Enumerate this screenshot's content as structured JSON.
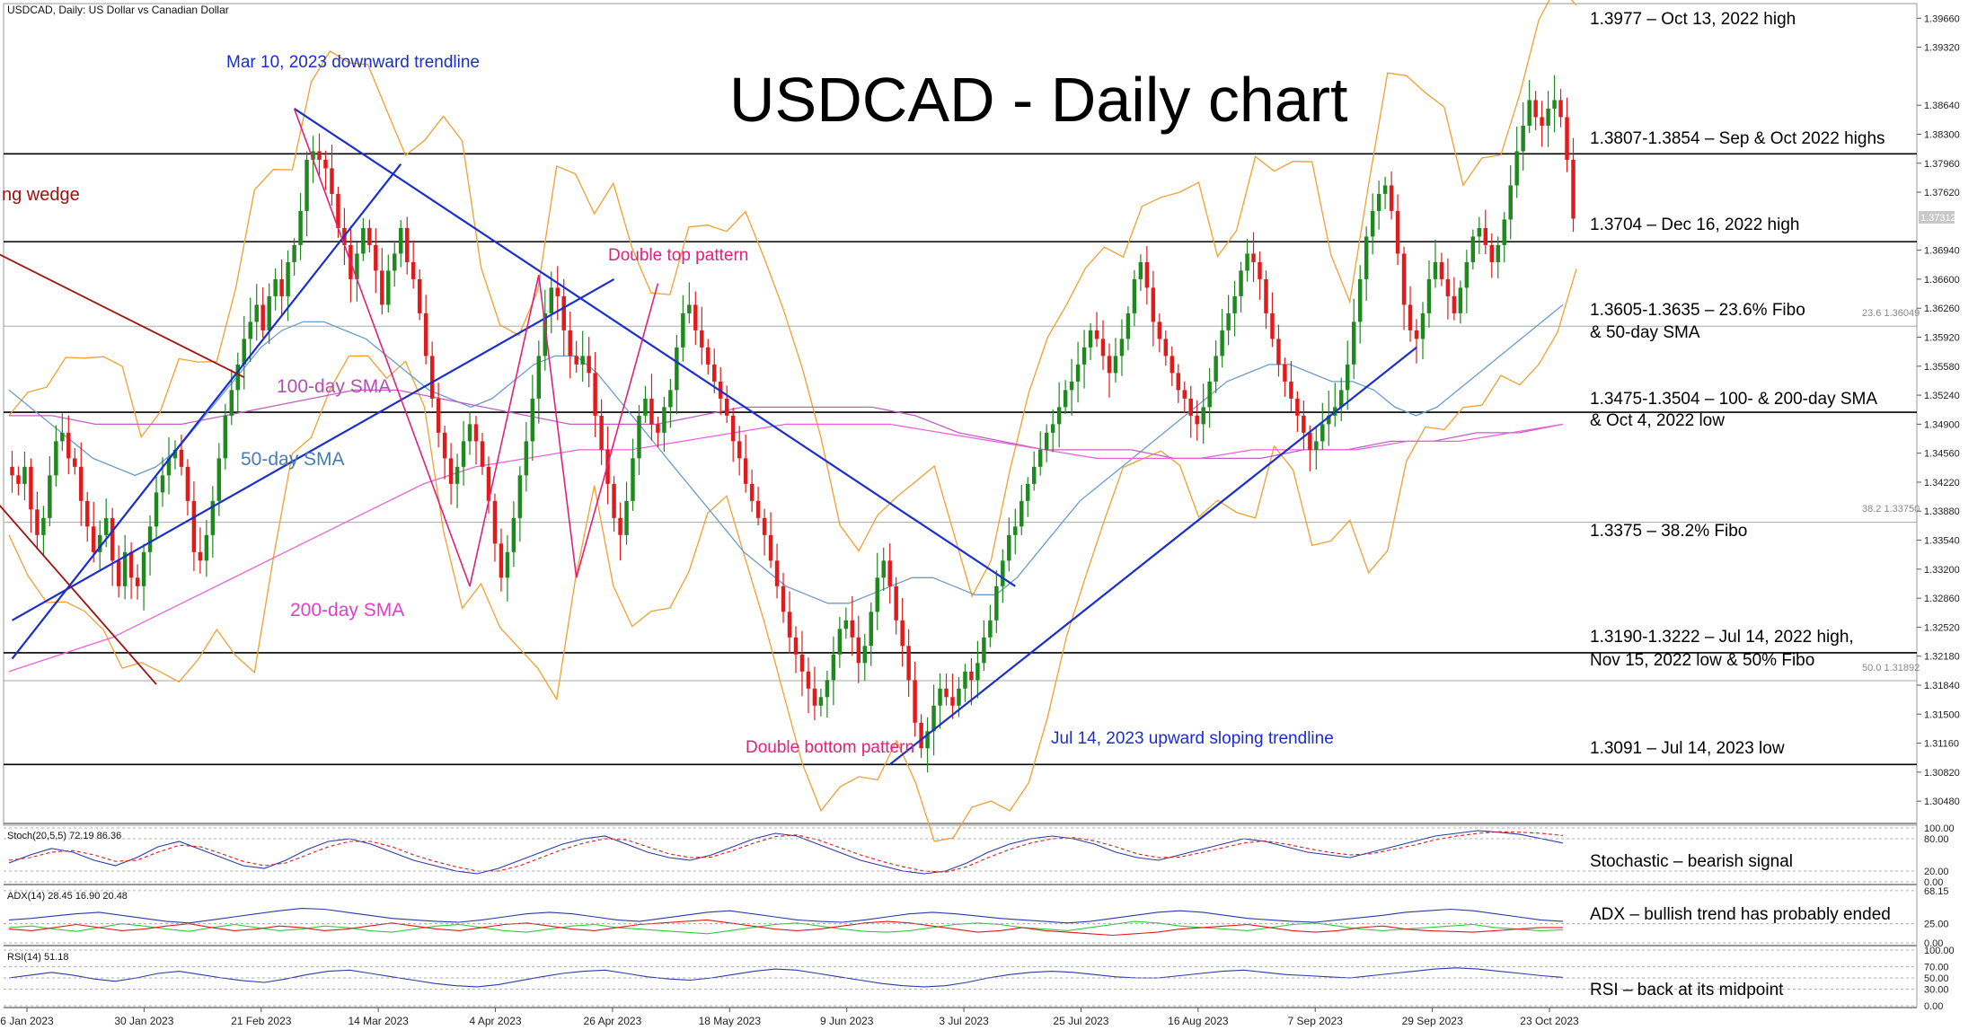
{
  "header": {
    "symbol": "USDCAD, Daily:  US Dollar vs Canadian Dollar",
    "big_title": "USDCAD - Daily chart"
  },
  "colors": {
    "bull": "#1e8a1e",
    "bear": "#e01b1b",
    "bollinger": "#f0a030",
    "sma50": "#6a9ccc",
    "sma100": "#c060c0",
    "sma200": "#f060d8",
    "trendline": "#1a2ecf",
    "wedge": "#a01010",
    "pattern": "#e0207a",
    "annotation_blue": "#1a2ecf",
    "stoch_main": "#2a3aa8",
    "stoch_signal": "#e01b1b",
    "adx_main": "#2a3aa8",
    "adx_plus": "#2ecc40",
    "adx_minus": "#e01b1b",
    "rsi": "#2a3aa8"
  },
  "right_annotations": [
    "1.3977 – Oct 13, 2022 high",
    "1.3807-1.3854 – Sep & Oct 2022 highs",
    "1.3704 – Dec 16, 2022 high",
    "1.3605-1.3635 – 23.6% Fibo",
    "& 50-day SMA",
    "1.3475-1.3504 – 100- & 200-day SMA",
    "& Oct 4, 2022 low",
    "1.3375 – 38.2% Fibo",
    "1.3190-1.3222 – Jul 14, 2022 high,",
    "Nov 15, 2022 low & 50% Fibo",
    "1.3091 – Jul 14, 2023 low",
    "Stochastic – bearish signal",
    "ADX – bullish trend has probably ended",
    "RSI – back at its midpoint"
  ],
  "chart_annotations": {
    "downward_trendline": "Mar 10, 2023 downward trendline",
    "wedge": "ng wedge",
    "double_top": "Double top pattern",
    "double_bottom": "Double bottom pattern",
    "upward_trendline": "Jul 14, 2023 upward sloping trendline",
    "sma100": "100-day SMA",
    "sma50": "50-day SMA",
    "sma200": "200-day SMA"
  },
  "fib_labels": {
    "f236": "23.6 1.36049",
    "f382": "38.2 1.33750",
    "f500": "50.0 1.31892"
  },
  "current_price_tag": "1.37312",
  "indicators": {
    "stoch_label": "Stoch(20,5,5) 72.19 86.36",
    "adx_label": "ADX(14) 28.45 16.90 20.48",
    "rsi_label": "RSI(14) 51.18",
    "stoch_ticks": [
      "100.00",
      "80.00",
      "20.00",
      "0.00"
    ],
    "adx_ticks": [
      "68.15",
      "25.00",
      "0.00"
    ],
    "rsi_ticks": [
      "100.00",
      "70.00",
      "50.00",
      "30.00",
      "0.00"
    ]
  },
  "chart_data": {
    "type": "candlestick",
    "title": "USDCAD - Daily chart",
    "price_axis_ticks": [
      "1.39660",
      "1.39320",
      "1.38640",
      "1.38300",
      "1.37960",
      "1.37620",
      "1.36940",
      "1.36600",
      "1.36260",
      "1.35920",
      "1.35580",
      "1.35240",
      "1.34900",
      "1.34560",
      "1.34220",
      "1.33880",
      "1.33540",
      "1.33200",
      "1.32860",
      "1.32520",
      "1.32180",
      "1.31840",
      "1.31500",
      "1.31160",
      "1.30820",
      "1.30480"
    ],
    "ylim": [
      1.3025,
      1.398
    ],
    "x_axis_labels": [
      "6 Jan 2023",
      "30 Jan 2023",
      "21 Feb 2023",
      "14 Mar 2023",
      "4 Apr 2023",
      "26 Apr 2023",
      "18 May 2023",
      "9 Jun 2023",
      "3 Jul 2023",
      "25 Jul 2023",
      "16 Aug 2023",
      "7 Sep 2023",
      "29 Sep 2023",
      "23 Oct 2023"
    ],
    "horizontal_levels": [
      1.3807,
      1.3704,
      1.3504,
      1.3222,
      1.3091
    ],
    "fib_levels": {
      "23.6": 1.36049,
      "38.2": 1.3375,
      "50.0": 1.31892
    },
    "close_path": [
      1.343,
      1.342,
      1.344,
      1.339,
      1.336,
      1.338,
      1.343,
      1.347,
      1.348,
      1.345,
      1.344,
      1.34,
      1.337,
      1.334,
      1.336,
      1.338,
      1.333,
      1.33,
      1.334,
      1.331,
      1.33,
      1.334,
      1.337,
      1.341,
      1.343,
      1.345,
      1.346,
      1.344,
      1.34,
      1.334,
      1.333,
      1.336,
      1.34,
      1.345,
      1.35,
      1.353,
      1.356,
      1.359,
      1.361,
      1.363,
      1.36,
      1.364,
      1.366,
      1.364,
      1.368,
      1.37,
      1.374,
      1.38,
      1.381,
      1.38,
      1.379,
      1.376,
      1.372,
      1.37,
      1.366,
      1.369,
      1.372,
      1.37,
      1.367,
      1.363,
      1.367,
      1.369,
      1.372,
      1.368,
      1.366,
      1.362,
      1.357,
      1.352,
      1.348,
      1.345,
      1.342,
      1.344,
      1.347,
      1.349,
      1.347,
      1.344,
      1.34,
      1.335,
      1.331,
      1.334,
      1.338,
      1.343,
      1.347,
      1.352,
      1.357,
      1.362,
      1.365,
      1.364,
      1.36,
      1.357,
      1.356,
      1.357,
      1.355,
      1.35,
      1.346,
      1.342,
      1.338,
      1.336,
      1.34,
      1.345,
      1.35,
      1.352,
      1.349,
      1.348,
      1.351,
      1.353,
      1.358,
      1.362,
      1.363,
      1.36,
      1.358,
      1.356,
      1.354,
      1.352,
      1.35,
      1.347,
      1.345,
      1.342,
      1.34,
      1.338,
      1.336,
      1.333,
      1.33,
      1.327,
      1.324,
      1.322,
      1.32,
      1.318,
      1.316,
      1.317,
      1.319,
      1.322,
      1.325,
      1.326,
      1.324,
      1.321,
      1.323,
      1.327,
      1.331,
      1.333,
      1.33,
      1.326,
      1.323,
      1.319,
      1.314,
      1.311,
      1.313,
      1.316,
      1.318,
      1.317,
      1.316,
      1.318,
      1.32,
      1.319,
      1.321,
      1.324,
      1.326,
      1.33,
      1.333,
      1.336,
      1.337,
      1.34,
      1.342,
      1.344,
      1.346,
      1.348,
      1.349,
      1.351,
      1.353,
      1.354,
      1.356,
      1.358,
      1.36,
      1.359,
      1.357,
      1.355,
      1.357,
      1.359,
      1.362,
      1.366,
      1.368,
      1.365,
      1.361,
      1.359,
      1.357,
      1.355,
      1.353,
      1.352,
      1.35,
      1.349,
      1.351,
      1.354,
      1.357,
      1.36,
      1.362,
      1.364,
      1.367,
      1.369,
      1.368,
      1.366,
      1.362,
      1.359,
      1.356,
      1.354,
      1.352,
      1.35,
      1.348,
      1.346,
      1.347,
      1.349,
      1.35,
      1.351,
      1.353,
      1.356,
      1.361,
      1.366,
      1.371,
      1.374,
      1.376,
      1.377,
      1.374,
      1.369,
      1.363,
      1.36,
      1.359,
      1.362,
      1.366,
      1.368,
      1.366,
      1.364,
      1.362,
      1.365,
      1.368,
      1.371,
      1.372,
      1.37,
      1.368,
      1.37,
      1.373,
      1.377,
      1.381,
      1.384,
      1.387,
      1.385,
      1.384,
      1.386,
      1.387,
      1.385,
      1.38,
      1.3731
    ],
    "sma50_path": [
      1.353,
      1.351,
      1.349,
      1.347,
      1.345,
      1.344,
      1.343,
      1.344,
      1.346,
      1.349,
      1.352,
      1.355,
      1.358,
      1.36,
      1.361,
      1.361,
      1.36,
      1.359,
      1.357,
      1.355,
      1.353,
      1.352,
      1.351,
      1.352,
      1.354,
      1.356,
      1.357,
      1.357,
      1.355,
      1.352,
      1.349,
      1.346,
      1.343,
      1.34,
      1.337,
      1.334,
      1.332,
      1.33,
      1.329,
      1.328,
      1.328,
      1.329,
      1.33,
      1.331,
      1.331,
      1.33,
      1.329,
      1.329,
      1.331,
      1.334,
      1.337,
      1.34,
      1.342,
      1.344,
      1.346,
      1.348,
      1.35,
      1.352,
      1.354,
      1.355,
      1.356,
      1.356,
      1.355,
      1.354,
      1.354,
      1.353,
      1.351,
      1.35,
      1.351,
      1.353,
      1.355,
      1.357,
      1.359,
      1.361,
      1.363
    ],
    "sma100_path": [
      1.35,
      1.35,
      1.349,
      1.349,
      1.349,
      1.35,
      1.351,
      1.352,
      1.353,
      1.353,
      1.352,
      1.351,
      1.35,
      1.349,
      1.349,
      1.349,
      1.35,
      1.351,
      1.351,
      1.351,
      1.351,
      1.35,
      1.348,
      1.347,
      1.346,
      1.346,
      1.346,
      1.345,
      1.345,
      1.345,
      1.346,
      1.346,
      1.347,
      1.347,
      1.348,
      1.348,
      1.349
    ],
    "sma200_path": [
      1.32,
      1.322,
      1.324,
      1.327,
      1.33,
      1.333,
      1.336,
      1.339,
      1.342,
      1.344,
      1.345,
      1.346,
      1.346,
      1.347,
      1.348,
      1.349,
      1.349,
      1.349,
      1.348,
      1.347,
      1.346,
      1.345,
      1.345,
      1.345,
      1.346,
      1.346,
      1.346,
      1.347,
      1.347,
      1.348,
      1.349
    ],
    "stoch_main": [
      35,
      50,
      62,
      55,
      40,
      30,
      45,
      65,
      75,
      60,
      45,
      30,
      25,
      40,
      60,
      75,
      80,
      70,
      55,
      40,
      30,
      20,
      15,
      25,
      40,
      55,
      70,
      80,
      85,
      70,
      55,
      45,
      40,
      50,
      65,
      80,
      90,
      85,
      70,
      55,
      40,
      30,
      20,
      15,
      20,
      35,
      55,
      70,
      80,
      85,
      80,
      70,
      55,
      45,
      40,
      50,
      60,
      70,
      80,
      75,
      65,
      55,
      50,
      45,
      55,
      65,
      75,
      85,
      90,
      95,
      92,
      88,
      80,
      72
    ],
    "stoch_signal": [
      40,
      45,
      55,
      58,
      50,
      38,
      40,
      55,
      68,
      65,
      52,
      38,
      30,
      35,
      50,
      65,
      75,
      75,
      65,
      50,
      38,
      28,
      20,
      20,
      30,
      45,
      60,
      72,
      80,
      78,
      65,
      52,
      45,
      46,
      58,
      72,
      84,
      87,
      78,
      64,
      50,
      38,
      28,
      20,
      18,
      28,
      45,
      60,
      72,
      80,
      82,
      76,
      65,
      52,
      45,
      46,
      54,
      63,
      72,
      76,
      70,
      62,
      55,
      50,
      52,
      60,
      68,
      78,
      85,
      90,
      93,
      92,
      90,
      86
    ],
    "adx_main": [
      30,
      32,
      35,
      38,
      40,
      36,
      32,
      28,
      26,
      30,
      34,
      38,
      42,
      45,
      44,
      40,
      36,
      32,
      30,
      28,
      27,
      30,
      34,
      38,
      40,
      38,
      34,
      30,
      28,
      32,
      36,
      40,
      42,
      38,
      34,
      30,
      28,
      27,
      30,
      34,
      38,
      40,
      38,
      35,
      32,
      30,
      28,
      26,
      28,
      32,
      36,
      40,
      42,
      40,
      36,
      32,
      30,
      28,
      27,
      30,
      33,
      36,
      40,
      42,
      44,
      42,
      38,
      34,
      30,
      28
    ],
    "adx_plus": [
      20,
      22,
      18,
      15,
      20,
      25,
      22,
      18,
      15,
      20,
      24,
      20,
      16,
      18,
      22,
      20,
      16,
      14,
      18,
      22,
      24,
      20,
      16,
      14,
      18,
      22,
      24,
      20,
      18,
      16,
      14,
      12,
      16,
      20,
      24,
      26,
      22,
      18,
      15,
      14,
      16,
      20,
      24,
      26,
      24,
      20,
      18,
      16,
      20,
      24,
      28,
      26,
      22,
      20,
      18,
      16,
      20,
      24,
      26,
      22,
      18,
      16,
      18,
      20,
      22,
      24,
      20,
      18,
      16,
      17
    ],
    "adx_minus": [
      18,
      16,
      20,
      24,
      20,
      16,
      18,
      22,
      25,
      20,
      16,
      18,
      22,
      20,
      16,
      18,
      22,
      26,
      22,
      18,
      16,
      20,
      24,
      26,
      22,
      18,
      16,
      20,
      24,
      26,
      28,
      30,
      26,
      22,
      18,
      16,
      18,
      22,
      26,
      28,
      26,
      22,
      18,
      14,
      16,
      20,
      16,
      14,
      12,
      10,
      12,
      14,
      18,
      20,
      22,
      24,
      20,
      16,
      14,
      16,
      20,
      22,
      18,
      16,
      15,
      14,
      16,
      18,
      20,
      20
    ],
    "rsi": [
      50,
      55,
      60,
      55,
      48,
      44,
      50,
      58,
      62,
      56,
      50,
      45,
      42,
      48,
      56,
      62,
      64,
      58,
      52,
      46,
      40,
      36,
      34,
      38,
      45,
      52,
      58,
      62,
      64,
      58,
      52,
      48,
      46,
      50,
      56,
      62,
      66,
      64,
      58,
      52,
      46,
      40,
      36,
      34,
      36,
      42,
      50,
      56,
      60,
      62,
      60,
      56,
      52,
      50,
      50,
      54,
      58,
      62,
      64,
      60,
      56,
      54,
      52,
      50,
      54,
      58,
      62,
      66,
      68,
      66,
      62,
      58,
      54,
      51
    ]
  }
}
